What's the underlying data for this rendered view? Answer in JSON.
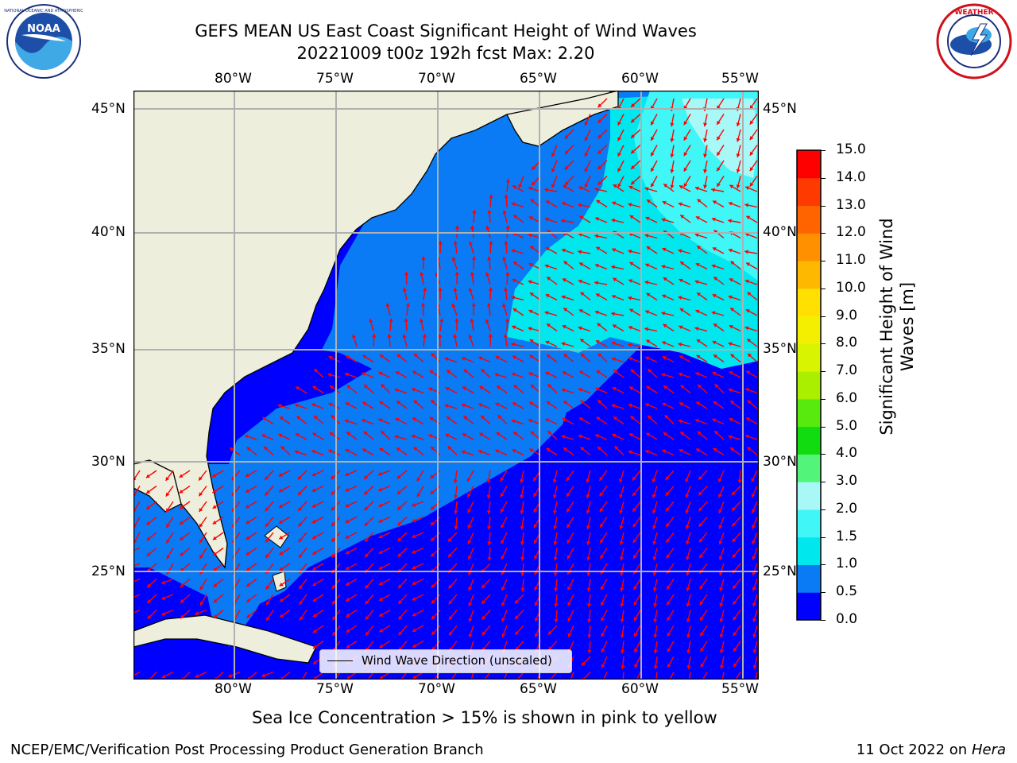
{
  "title_line1": "GEFS MEAN US East Coast Significant Height of Wind Waves",
  "title_line2": "20221009 t00z 192h fcst   Max: 2.20",
  "lon_labels": [
    "80°W",
    "75°W",
    "70°W",
    "65°W",
    "60°W",
    "55°W"
  ],
  "lat_labels": [
    "45°N",
    "40°N",
    "35°N",
    "30°N",
    "25°N"
  ],
  "colorbar": {
    "title": "Significant Height of Wind Waves [m]",
    "ticks": [
      "0.0",
      "0.5",
      "1.0",
      "1.5",
      "2.0",
      "3.0",
      "4.0",
      "5.0",
      "6.0",
      "7.0",
      "8.0",
      "9.0",
      "10.0",
      "11.0",
      "12.0",
      "13.0",
      "14.0",
      "15.0"
    ],
    "colors": [
      "#0000ff",
      "#0a7af5",
      "#00e8ee",
      "#40f6f6",
      "#a8f8f8",
      "#52f47a",
      "#10dc10",
      "#58ea0e",
      "#aaee00",
      "#d8f400",
      "#f4ee00",
      "#ffe000",
      "#ffb800",
      "#ff9000",
      "#ff6400",
      "#ff3a00",
      "#ff0000"
    ]
  },
  "legend_label": "Wind Wave Direction (unscaled)",
  "footnote": "Sea Ice Concentration > 15% is shown in pink to yellow",
  "footer_left": "NCEP/EMC/Verification Post Processing Product Generation Branch",
  "footer_right_date": "11 Oct 2022 on ",
  "footer_right_machine": "Hera",
  "colors": {
    "land": "#eeeedc",
    "wave_lt_0_5": "#0000ff",
    "wave_0_5_1": "#0a7af5",
    "wave_1_1_5": "#00e8ee",
    "wave_1_5_2": "#40f6f6",
    "wave_2_3": "#a8f8f8",
    "arrow": "#ff0000",
    "grid": "#b0b0b0"
  },
  "logos": [
    "noaa-logo",
    "nws-logo"
  ]
}
